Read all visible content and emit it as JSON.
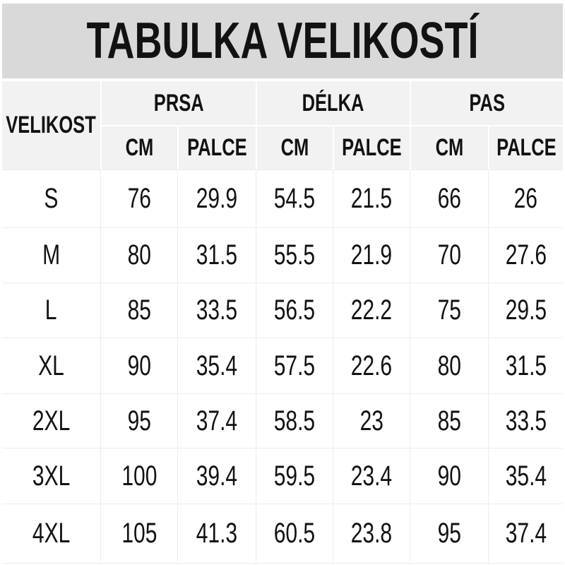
{
  "chart_data": {
    "type": "table",
    "title": "TABULKA VELIKOSTÍ",
    "row_header": "VELIKOST",
    "column_groups": [
      {
        "label": "PRSA",
        "units": [
          "CM",
          "PALCE"
        ]
      },
      {
        "label": "DÉLKA",
        "units": [
          "CM",
          "PALCE"
        ]
      },
      {
        "label": "PAS",
        "units": [
          "CM",
          "PALCE"
        ]
      }
    ],
    "rows": [
      {
        "size": "S",
        "values": [
          "76",
          "29.9",
          "54.5",
          "21.5",
          "66",
          "26"
        ]
      },
      {
        "size": "M",
        "values": [
          "80",
          "31.5",
          "55.5",
          "21.9",
          "70",
          "27.6"
        ]
      },
      {
        "size": "L",
        "values": [
          "85",
          "33.5",
          "56.5",
          "22.2",
          "75",
          "29.5"
        ]
      },
      {
        "size": "XL",
        "values": [
          "90",
          "35.4",
          "57.5",
          "22.6",
          "80",
          "31.5"
        ]
      },
      {
        "size": "2XL",
        "values": [
          "95",
          "37.4",
          "58.5",
          "23",
          "85",
          "33.5"
        ]
      },
      {
        "size": "3XL",
        "values": [
          "100",
          "39.4",
          "59.5",
          "23.4",
          "90",
          "35.4"
        ]
      },
      {
        "size": "4XL",
        "values": [
          "105",
          "41.3",
          "60.5",
          "23.8",
          "95",
          "37.4"
        ]
      }
    ]
  },
  "colors": {
    "banner_bg": "#d9d9d9",
    "header_bg": "#f2f2f2",
    "grid_line": "#ececec",
    "text": "#121212",
    "page_bg": "#ffffff"
  }
}
